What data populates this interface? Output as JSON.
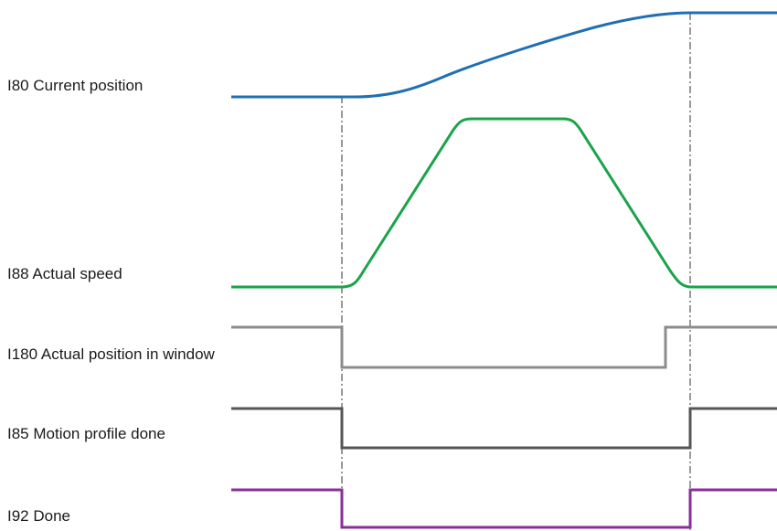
{
  "signals": [
    {
      "id": "current_position",
      "label": "I80 Current position",
      "color": "#1f6fb2"
    },
    {
      "id": "actual_speed",
      "label": "I88 Actual speed",
      "color": "#1aa34a"
    },
    {
      "id": "position_in_window",
      "label": "I180 Actual position in window",
      "color": "#8c8c8c"
    },
    {
      "id": "motion_profile_done",
      "label": "I85 Motion profile done",
      "color": "#555555"
    },
    {
      "id": "done",
      "label": "I92 Done",
      "color": "#8a2e9b"
    }
  ],
  "marker_color": "#333333"
}
